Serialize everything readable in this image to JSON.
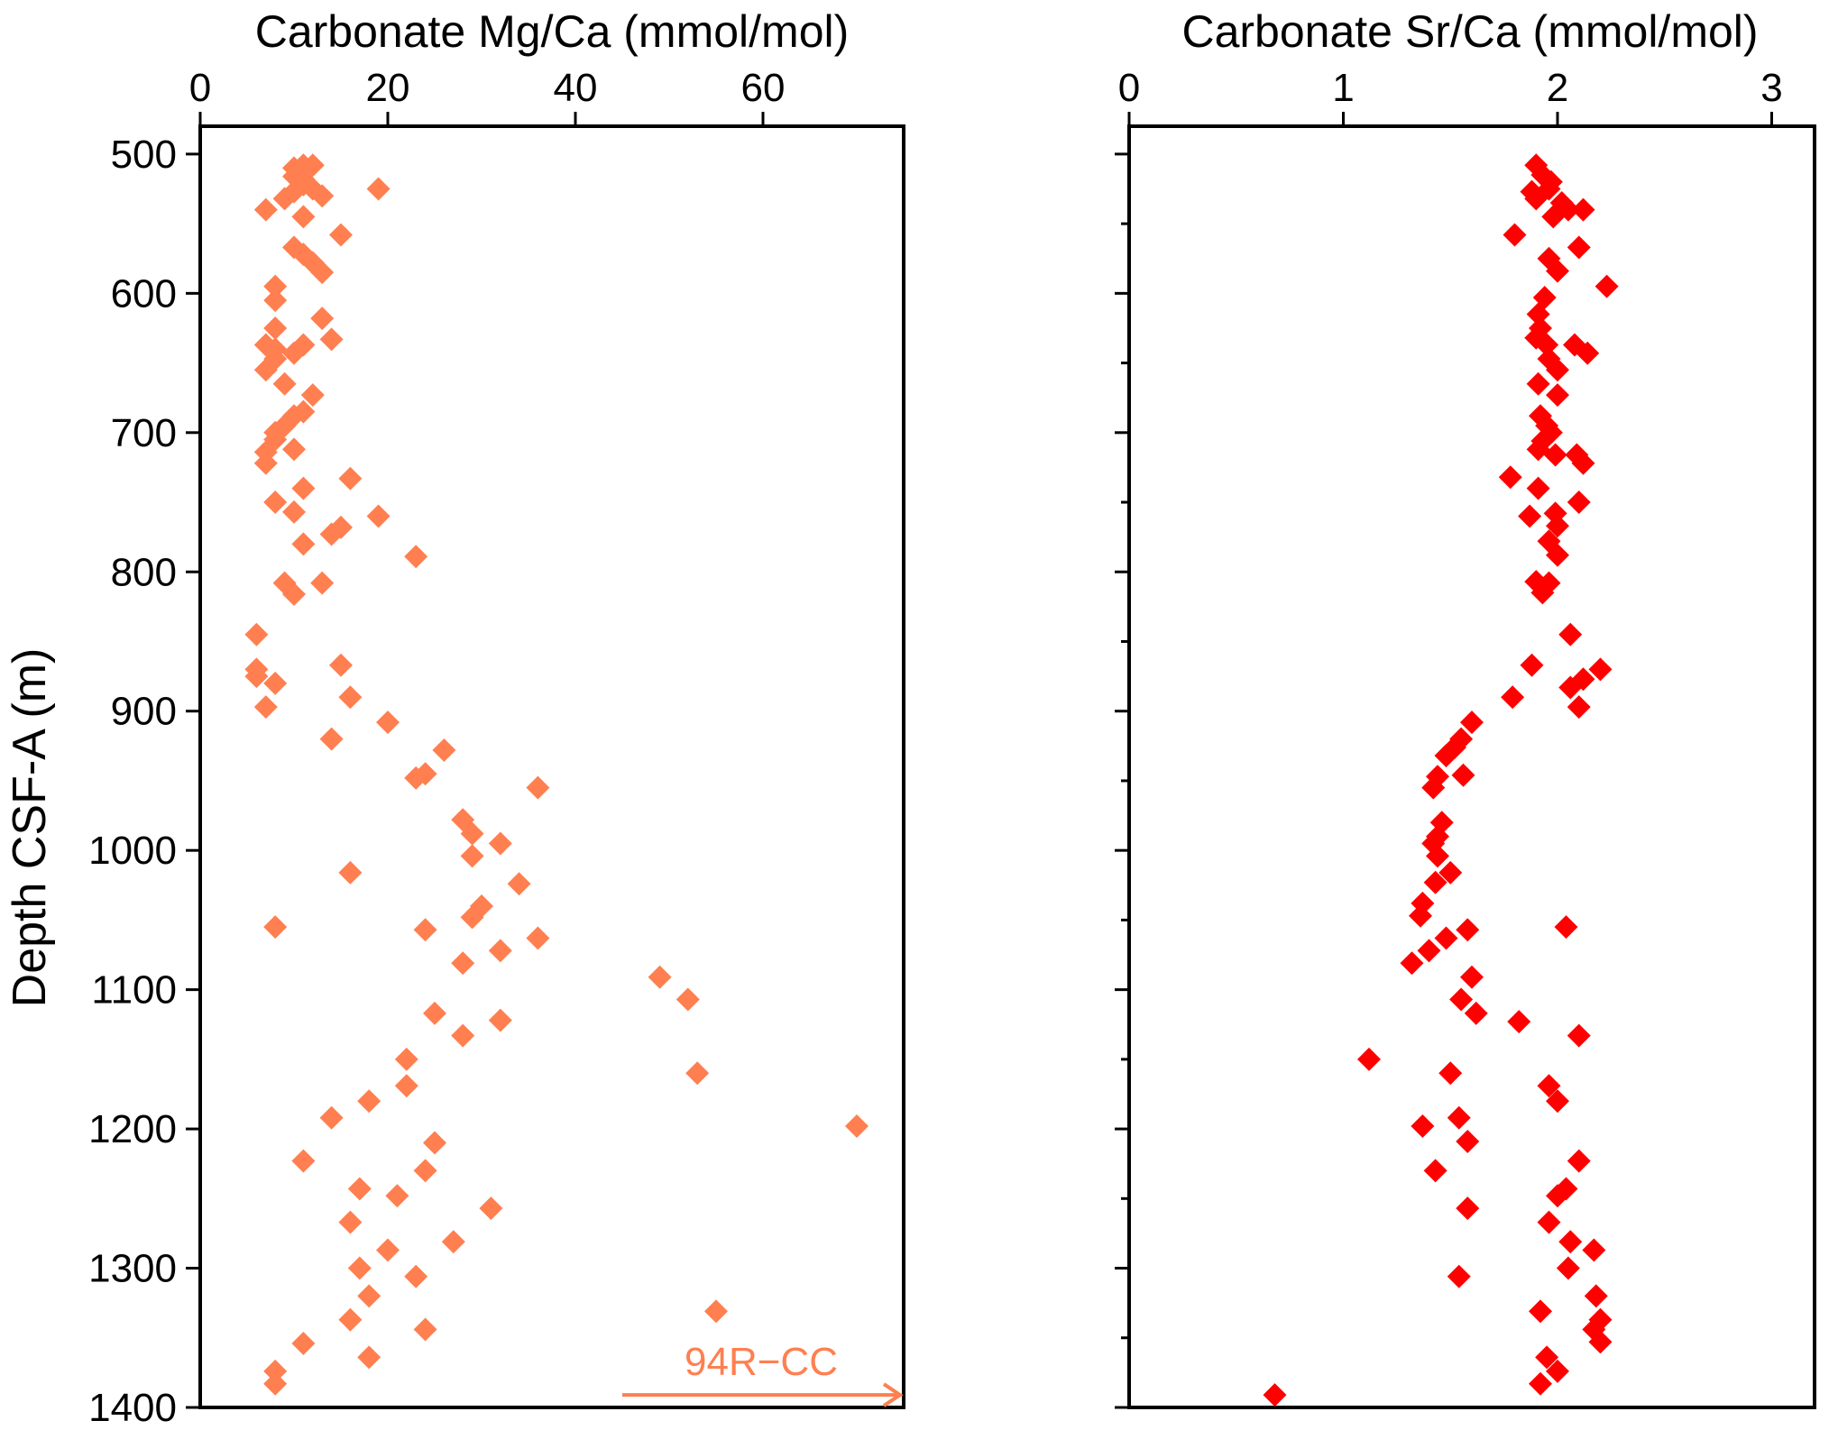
{
  "chart_data": {
    "type": "scatter",
    "ylabel": "Depth CSF-A (m)",
    "ylim": [
      480,
      1400
    ],
    "yticks": [
      500,
      600,
      700,
      800,
      900,
      1000,
      1100,
      1200,
      1300,
      1400
    ],
    "y_inverted": true,
    "panels": [
      {
        "title": "Carbonate Mg/Ca (mmol/mol)",
        "xlim": [
          0,
          75
        ],
        "xticks": [
          0,
          20,
          40,
          60
        ],
        "marker": "diamond",
        "color": "#FF7F50",
        "annotation": {
          "text": "94R−CC",
          "arrow": "right",
          "depth": 1391
        },
        "points": [
          [
            11,
            508
          ],
          [
            12,
            508
          ],
          [
            10,
            510
          ],
          [
            10,
            516
          ],
          [
            11,
            518
          ],
          [
            11,
            522
          ],
          [
            12,
            525
          ],
          [
            10,
            527
          ],
          [
            19,
            525
          ],
          [
            13,
            530
          ],
          [
            9,
            532
          ],
          [
            7,
            540
          ],
          [
            11,
            545
          ],
          [
            15,
            558
          ],
          [
            10,
            567
          ],
          [
            11,
            572
          ],
          [
            12,
            578
          ],
          [
            13,
            585
          ],
          [
            8,
            595
          ],
          [
            8,
            605
          ],
          [
            13,
            618
          ],
          [
            8,
            625
          ],
          [
            14,
            633
          ],
          [
            11,
            637
          ],
          [
            7,
            637
          ],
          [
            8,
            640
          ],
          [
            10,
            643
          ],
          [
            8,
            647
          ],
          [
            7,
            655
          ],
          [
            9,
            665
          ],
          [
            12,
            673
          ],
          [
            11,
            685
          ],
          [
            10,
            688
          ],
          [
            9,
            695
          ],
          [
            8,
            700
          ],
          [
            8,
            705
          ],
          [
            10,
            712
          ],
          [
            7,
            714
          ],
          [
            7,
            722
          ],
          [
            16,
            733
          ],
          [
            11,
            740
          ],
          [
            8,
            750
          ],
          [
            10,
            757
          ],
          [
            19,
            760
          ],
          [
            15,
            768
          ],
          [
            14,
            773
          ],
          [
            11,
            780
          ],
          [
            23,
            789
          ],
          [
            9,
            808
          ],
          [
            13,
            808
          ],
          [
            10,
            816
          ],
          [
            6,
            845
          ],
          [
            6,
            870
          ],
          [
            6,
            875
          ],
          [
            15,
            867
          ],
          [
            8,
            880
          ],
          [
            16,
            890
          ],
          [
            7,
            897
          ],
          [
            20,
            908
          ],
          [
            14,
            920
          ],
          [
            26,
            928
          ],
          [
            24,
            945
          ],
          [
            23,
            948
          ],
          [
            36,
            955
          ],
          [
            28,
            978
          ],
          [
            29,
            988
          ],
          [
            32,
            995
          ],
          [
            29,
            1004
          ],
          [
            16,
            1016
          ],
          [
            34,
            1024
          ],
          [
            30,
            1040
          ],
          [
            8,
            1055
          ],
          [
            29,
            1048
          ],
          [
            24,
            1057
          ],
          [
            36,
            1063
          ],
          [
            32,
            1072
          ],
          [
            28,
            1081
          ],
          [
            49,
            1091
          ],
          [
            52,
            1107
          ],
          [
            25,
            1117
          ],
          [
            32,
            1122
          ],
          [
            28,
            1133
          ],
          [
            53,
            1160
          ],
          [
            22,
            1150
          ],
          [
            22,
            1169
          ],
          [
            18,
            1180
          ],
          [
            14,
            1192
          ],
          [
            70,
            1198
          ],
          [
            25,
            1210
          ],
          [
            11,
            1223
          ],
          [
            24,
            1230
          ],
          [
            17,
            1243
          ],
          [
            21,
            1248
          ],
          [
            31,
            1257
          ],
          [
            16,
            1267
          ],
          [
            27,
            1281
          ],
          [
            20,
            1287
          ],
          [
            17,
            1300
          ],
          [
            23,
            1306
          ],
          [
            18,
            1320
          ],
          [
            55,
            1331
          ],
          [
            16,
            1337
          ],
          [
            24,
            1344
          ],
          [
            11,
            1354
          ],
          [
            18,
            1364
          ],
          [
            8,
            1374
          ],
          [
            8,
            1383
          ]
        ]
      },
      {
        "title": "Carbonate Sr/Ca (mmol/mol)",
        "xlim": [
          0,
          3.2
        ],
        "xticks": [
          0,
          1,
          2,
          3
        ],
        "marker": "diamond",
        "color": "#FF0000",
        "points": [
          [
            1.9,
            508
          ],
          [
            1.93,
            515
          ],
          [
            1.97,
            520
          ],
          [
            1.88,
            527
          ],
          [
            1.96,
            525
          ],
          [
            1.9,
            532
          ],
          [
            2.02,
            535
          ],
          [
            2.05,
            540
          ],
          [
            2.12,
            540
          ],
          [
            1.98,
            545
          ],
          [
            1.8,
            558
          ],
          [
            2.1,
            567
          ],
          [
            1.96,
            575
          ],
          [
            2.0,
            584
          ],
          [
            2.23,
            595
          ],
          [
            1.94,
            603
          ],
          [
            1.91,
            615
          ],
          [
            1.92,
            625
          ],
          [
            1.9,
            632
          ],
          [
            1.95,
            637
          ],
          [
            2.08,
            637
          ],
          [
            2.14,
            643
          ],
          [
            1.96,
            647
          ],
          [
            2.0,
            655
          ],
          [
            1.91,
            665
          ],
          [
            2.0,
            673
          ],
          [
            1.92,
            688
          ],
          [
            1.95,
            695
          ],
          [
            1.97,
            700
          ],
          [
            1.93,
            706
          ],
          [
            1.91,
            712
          ],
          [
            1.99,
            716
          ],
          [
            2.09,
            716
          ],
          [
            2.12,
            722
          ],
          [
            1.78,
            732
          ],
          [
            1.91,
            740
          ],
          [
            2.1,
            750
          ],
          [
            1.99,
            758
          ],
          [
            1.87,
            760
          ],
          [
            2.0,
            767
          ],
          [
            1.96,
            778
          ],
          [
            2.0,
            788
          ],
          [
            1.9,
            807
          ],
          [
            1.96,
            808
          ],
          [
            1.93,
            815
          ],
          [
            2.06,
            845
          ],
          [
            1.88,
            867
          ],
          [
            2.2,
            870
          ],
          [
            2.12,
            877
          ],
          [
            2.06,
            883
          ],
          [
            1.79,
            890
          ],
          [
            2.1,
            897
          ],
          [
            1.6,
            908
          ],
          [
            1.55,
            920
          ],
          [
            1.52,
            926
          ],
          [
            1.48,
            932
          ],
          [
            1.44,
            947
          ],
          [
            1.56,
            946
          ],
          [
            1.42,
            955
          ],
          [
            1.46,
            980
          ],
          [
            1.44,
            990
          ],
          [
            1.42,
            995
          ],
          [
            1.44,
            1004
          ],
          [
            1.5,
            1016
          ],
          [
            1.43,
            1023
          ],
          [
            1.37,
            1038
          ],
          [
            1.36,
            1047
          ],
          [
            2.04,
            1055
          ],
          [
            1.58,
            1057
          ],
          [
            1.48,
            1063
          ],
          [
            1.4,
            1072
          ],
          [
            1.32,
            1081
          ],
          [
            1.6,
            1091
          ],
          [
            1.55,
            1107
          ],
          [
            1.62,
            1117
          ],
          [
            1.82,
            1123
          ],
          [
            2.1,
            1133
          ],
          [
            1.12,
            1150
          ],
          [
            1.5,
            1160
          ],
          [
            1.96,
            1169
          ],
          [
            2.0,
            1180
          ],
          [
            1.37,
            1198
          ],
          [
            1.54,
            1192
          ],
          [
            1.58,
            1209
          ],
          [
            2.1,
            1223
          ],
          [
            1.43,
            1230
          ],
          [
            2.04,
            1243
          ],
          [
            2.0,
            1248
          ],
          [
            1.58,
            1257
          ],
          [
            1.96,
            1267
          ],
          [
            2.06,
            1281
          ],
          [
            2.17,
            1287
          ],
          [
            2.05,
            1300
          ],
          [
            1.54,
            1306
          ],
          [
            2.18,
            1320
          ],
          [
            1.92,
            1331
          ],
          [
            2.2,
            1337
          ],
          [
            2.17,
            1344
          ],
          [
            2.2,
            1353
          ],
          [
            1.95,
            1364
          ],
          [
            2.0,
            1374
          ],
          [
            1.92,
            1383
          ],
          [
            0.68,
            1391
          ]
        ]
      }
    ]
  }
}
